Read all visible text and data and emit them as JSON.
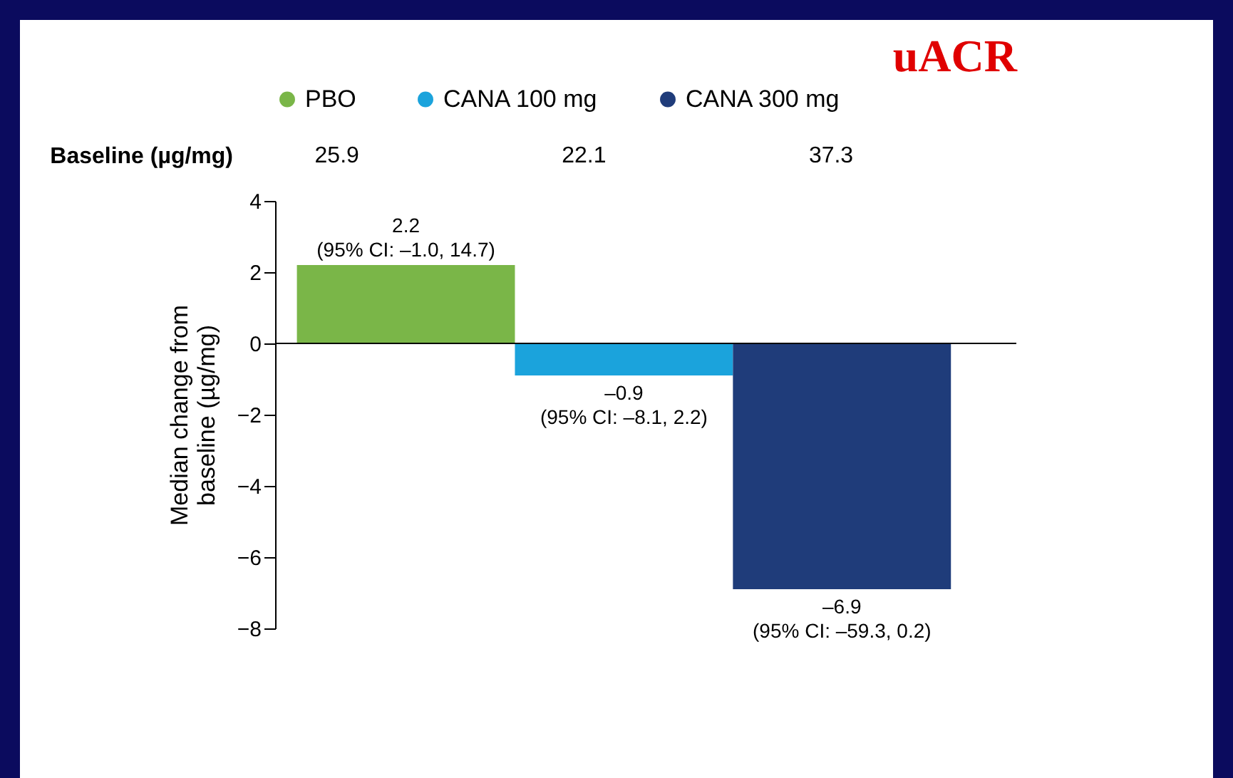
{
  "chart_data": {
    "type": "bar",
    "title": "uACR",
    "ylabel": "Median change from baseline (µg/mg)",
    "categories": [
      null,
      null,
      null
    ],
    "series": [
      {
        "name": "PBO",
        "color": "#7ab648",
        "values": [
          2.2,
          null,
          null
        ],
        "value_labels": [
          "2.2\n(95% CI: –1.0, 14.7)",
          null,
          null
        ]
      },
      {
        "name": "CANA 100 mg",
        "color": "#1ba3dc",
        "values": [
          null,
          -0.9,
          null
        ],
        "value_labels": [
          null,
          "–0.9\n(95% CI: –8.1, 2.2)",
          null
        ]
      },
      {
        "name": "CANA 300 mg",
        "color": "#1f3c7a",
        "values": [
          null,
          null,
          -6.9
        ],
        "value_labels": [
          null,
          null,
          "–6.9\n(95% CI: –59.3, 0.2)"
        ]
      }
    ],
    "ylim": [
      -8,
      4
    ],
    "yticks": [
      -8,
      -6,
      -4,
      -2,
      0,
      2,
      4
    ],
    "legend": "top",
    "annotations": [
      "Baseline (µg/mg)",
      "25.9",
      "22.1",
      "37.3"
    ]
  }
}
